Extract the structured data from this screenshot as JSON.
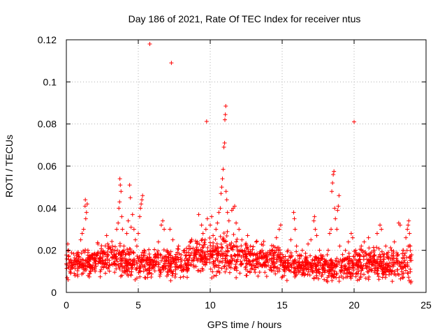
{
  "chart_data": {
    "type": "scatter",
    "title": "Day 186 of 2021, Rate Of TEC Index for receiver ntus",
    "xlabel": "GPS time / hours",
    "ylabel": "ROTI / TECUs",
    "xlim": [
      0,
      25
    ],
    "ylim": [
      0,
      0.12
    ],
    "xticks": [
      0,
      5,
      10,
      15,
      20,
      25
    ],
    "xtick_labels": [
      "0",
      "5",
      "10",
      "15",
      "20",
      "25"
    ],
    "yticks": [
      0,
      0.02,
      0.04,
      0.06,
      0.08,
      0.1,
      0.12
    ],
    "ytick_labels": [
      "0",
      "0.02",
      "0.04",
      "0.06",
      "0.08",
      "0.1",
      "0.12"
    ],
    "grid": true,
    "marker": "+",
    "color": "#ff0000",
    "series": [
      {
        "name": "ROTI",
        "points": [
          [
            0.05,
            0.007
          ],
          [
            0.1,
            0.023
          ],
          [
            0.12,
            0.006
          ],
          [
            0.15,
            0.02
          ],
          [
            0.25,
            0.01
          ],
          [
            0.3,
            0.015
          ],
          [
            0.45,
            0.012
          ],
          [
            0.6,
            0.008
          ],
          [
            0.8,
            0.018
          ],
          [
            1.0,
            0.025
          ],
          [
            1.1,
            0.028
          ],
          [
            1.2,
            0.03
          ],
          [
            1.3,
            0.041
          ],
          [
            1.32,
            0.044
          ],
          [
            1.35,
            0.035
          ],
          [
            1.4,
            0.038
          ],
          [
            1.45,
            0.042
          ],
          [
            1.5,
            0.02
          ],
          [
            1.6,
            0.012
          ],
          [
            1.8,
            0.016
          ],
          [
            2.0,
            0.01
          ],
          [
            2.2,
            0.023
          ],
          [
            2.4,
            0.014
          ],
          [
            2.6,
            0.019
          ],
          [
            2.8,
            0.027
          ],
          [
            3.0,
            0.013
          ],
          [
            3.2,
            0.022
          ],
          [
            3.4,
            0.017
          ],
          [
            3.5,
            0.03
          ],
          [
            3.6,
            0.033
          ],
          [
            3.65,
            0.04
          ],
          [
            3.7,
            0.043
          ],
          [
            3.72,
            0.054
          ],
          [
            3.75,
            0.051
          ],
          [
            3.8,
            0.048
          ],
          [
            3.85,
            0.036
          ],
          [
            3.9,
            0.03
          ],
          [
            4.0,
            0.022
          ],
          [
            4.1,
            0.018
          ],
          [
            4.2,
            0.028
          ],
          [
            4.3,
            0.034
          ],
          [
            4.4,
            0.051
          ],
          [
            4.45,
            0.045
          ],
          [
            4.5,
            0.031
          ],
          [
            4.6,
            0.037
          ],
          [
            4.7,
            0.03
          ],
          [
            4.8,
            0.025
          ],
          [
            4.9,
            0.022
          ],
          [
            5.0,
            0.028
          ],
          [
            5.1,
            0.036
          ],
          [
            5.15,
            0.04
          ],
          [
            5.2,
            0.042
          ],
          [
            5.25,
            0.044
          ],
          [
            5.3,
            0.046
          ],
          [
            5.4,
            0.02
          ],
          [
            5.6,
            0.015
          ],
          [
            5.8,
            0.118
          ],
          [
            6.0,
            0.012
          ],
          [
            6.2,
            0.018
          ],
          [
            6.4,
            0.024
          ],
          [
            6.6,
            0.032
          ],
          [
            6.7,
            0.034
          ],
          [
            6.8,
            0.03
          ],
          [
            7.0,
            0.02
          ],
          [
            7.2,
            0.03
          ],
          [
            7.3,
            0.109
          ],
          [
            7.4,
            0.025
          ],
          [
            7.6,
            0.016
          ],
          [
            7.8,
            0.022
          ],
          [
            8.0,
            0.013
          ],
          [
            8.2,
            0.019
          ],
          [
            8.4,
            0.01
          ],
          [
            8.6,
            0.024
          ],
          [
            8.8,
            0.015
          ],
          [
            9.0,
            0.02
          ],
          [
            9.2,
            0.037
          ],
          [
            9.4,
            0.032
          ],
          [
            9.5,
            0.028
          ],
          [
            9.7,
            0.03
          ],
          [
            9.75,
            0.0812
          ],
          [
            9.8,
            0.035
          ],
          [
            10.0,
            0.032
          ],
          [
            10.1,
            0.036
          ],
          [
            10.2,
            0.027
          ],
          [
            10.4,
            0.03
          ],
          [
            10.5,
            0.033
          ],
          [
            10.6,
            0.038
          ],
          [
            10.7,
            0.04
          ],
          [
            10.75,
            0.047
          ],
          [
            10.8,
            0.05
          ],
          [
            10.85,
            0.054
          ],
          [
            10.9,
            0.0585
          ],
          [
            10.95,
            0.069
          ],
          [
            11.0,
            0.071
          ],
          [
            11.02,
            0.082
          ],
          [
            11.05,
            0.0845
          ],
          [
            11.08,
            0.0885
          ],
          [
            11.1,
            0.048
          ],
          [
            11.15,
            0.044
          ],
          [
            11.2,
            0.038
          ],
          [
            11.3,
            0.034
          ],
          [
            11.5,
            0.039
          ],
          [
            11.6,
            0.04
          ],
          [
            11.7,
            0.041
          ],
          [
            11.8,
            0.033
          ],
          [
            12.0,
            0.03
          ],
          [
            12.2,
            0.025
          ],
          [
            12.4,
            0.02
          ],
          [
            12.6,
            0.027
          ],
          [
            12.8,
            0.022
          ],
          [
            13.0,
            0.018
          ],
          [
            13.2,
            0.024
          ],
          [
            13.4,
            0.016
          ],
          [
            13.6,
            0.02
          ],
          [
            13.8,
            0.014
          ],
          [
            14.0,
            0.019
          ],
          [
            14.2,
            0.012
          ],
          [
            14.4,
            0.022
          ],
          [
            14.6,
            0.026
          ],
          [
            14.8,
            0.03
          ],
          [
            14.9,
            0.032
          ],
          [
            15.0,
            0.018
          ],
          [
            15.2,
            0.014
          ],
          [
            15.4,
            0.02
          ],
          [
            15.6,
            0.025
          ],
          [
            15.8,
            0.038
          ],
          [
            15.85,
            0.035
          ],
          [
            15.9,
            0.03
          ],
          [
            16.0,
            0.022
          ],
          [
            16.2,
            0.016
          ],
          [
            16.4,
            0.02
          ],
          [
            16.6,
            0.014
          ],
          [
            16.8,
            0.023
          ],
          [
            17.0,
            0.025
          ],
          [
            17.2,
            0.034
          ],
          [
            17.25,
            0.036
          ],
          [
            17.3,
            0.03
          ],
          [
            17.4,
            0.027
          ],
          [
            17.6,
            0.02
          ],
          [
            17.8,
            0.016
          ],
          [
            18.0,
            0.014
          ],
          [
            18.2,
            0.02
          ],
          [
            18.3,
            0.028
          ],
          [
            18.4,
            0.03
          ],
          [
            18.45,
            0.048
          ],
          [
            18.5,
            0.052
          ],
          [
            18.55,
            0.056
          ],
          [
            18.6,
            0.0575
          ],
          [
            18.65,
            0.04
          ],
          [
            18.7,
            0.035
          ],
          [
            18.8,
            0.03
          ],
          [
            18.85,
            0.039
          ],
          [
            18.9,
            0.041
          ],
          [
            18.95,
            0.046
          ],
          [
            19.0,
            0.022
          ],
          [
            19.2,
            0.018
          ],
          [
            19.4,
            0.016
          ],
          [
            19.6,
            0.024
          ],
          [
            19.8,
            0.028
          ],
          [
            19.9,
            0.026
          ],
          [
            20.0,
            0.081
          ],
          [
            20.1,
            0.02
          ],
          [
            20.3,
            0.018
          ],
          [
            20.5,
            0.022
          ],
          [
            20.7,
            0.024
          ],
          [
            21.0,
            0.026
          ],
          [
            21.2,
            0.015
          ],
          [
            21.4,
            0.02
          ],
          [
            21.6,
            0.028
          ],
          [
            21.8,
            0.032
          ],
          [
            21.9,
            0.03
          ],
          [
            22.0,
            0.018
          ],
          [
            22.2,
            0.022
          ],
          [
            22.4,
            0.016
          ],
          [
            22.6,
            0.02
          ],
          [
            22.8,
            0.024
          ],
          [
            23.0,
            0.018
          ],
          [
            23.1,
            0.033
          ],
          [
            23.2,
            0.032
          ],
          [
            23.4,
            0.02
          ],
          [
            23.6,
            0.026
          ],
          [
            23.7,
            0.03
          ],
          [
            23.75,
            0.032
          ],
          [
            23.8,
            0.034
          ],
          [
            23.85,
            0.028
          ],
          [
            23.9,
            0.022
          ]
        ],
        "band_segments": [
          {
            "x": [
              0.0,
              2.0
            ],
            "low": 0.006,
            "high": 0.022
          },
          {
            "x": [
              2.0,
              4.0
            ],
            "low": 0.006,
            "high": 0.026
          },
          {
            "x": [
              4.0,
              6.5
            ],
            "low": 0.004,
            "high": 0.024
          },
          {
            "x": [
              6.5,
              8.5
            ],
            "low": 0.004,
            "high": 0.024
          },
          {
            "x": [
              8.5,
              12.5
            ],
            "low": 0.004,
            "high": 0.03
          },
          {
            "x": [
              12.5,
              15.0
            ],
            "low": 0.005,
            "high": 0.026
          },
          {
            "x": [
              15.0,
              18.0
            ],
            "low": 0.004,
            "high": 0.022
          },
          {
            "x": [
              18.0,
              20.0
            ],
            "low": 0.002,
            "high": 0.022
          },
          {
            "x": [
              20.0,
              24.0
            ],
            "low": 0.003,
            "high": 0.024
          }
        ]
      }
    ]
  }
}
